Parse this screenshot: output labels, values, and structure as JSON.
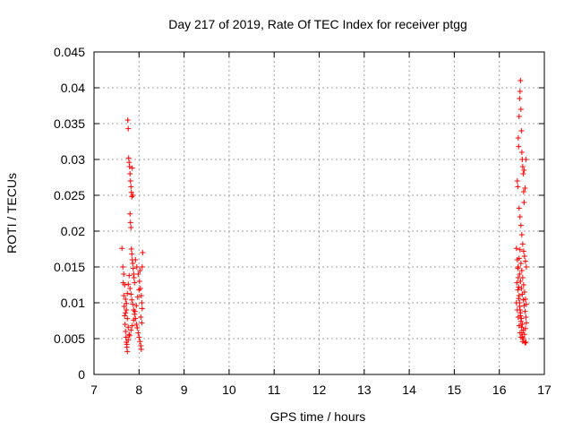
{
  "chart_data": {
    "type": "scatter",
    "title": "Day 217 of 2019, Rate Of TEC Index for receiver ptgg",
    "xlabel": "GPS time / hours",
    "ylabel": "ROTI / TECUs",
    "xlim": [
      7,
      17
    ],
    "ylim": [
      0,
      0.045
    ],
    "x_ticks": [
      7,
      8,
      9,
      10,
      11,
      12,
      13,
      14,
      15,
      16,
      17
    ],
    "x_tick_labels": [
      "7",
      "8",
      "9",
      "10",
      "11",
      "12",
      "13",
      "14",
      "15",
      "16",
      "17"
    ],
    "y_ticks": [
      0,
      0.005,
      0.01,
      0.015,
      0.02,
      0.025,
      0.03,
      0.035,
      0.04,
      0.045
    ],
    "y_tick_labels": [
      "0",
      "0.005",
      "0.01",
      "0.015",
      "0.02",
      "0.025",
      "0.03",
      "0.035",
      "0.04",
      "0.045"
    ],
    "grid": true,
    "marker": "+",
    "color": "#ff0000",
    "series": [
      {
        "name": "ROTI",
        "points": [
          [
            7.62,
            0.0176
          ],
          [
            7.64,
            0.015
          ],
          [
            7.65,
            0.0128
          ],
          [
            7.66,
            0.011
          ],
          [
            7.67,
            0.0095
          ],
          [
            7.68,
            0.0082
          ],
          [
            7.69,
            0.007
          ],
          [
            7.7,
            0.006
          ],
          [
            7.71,
            0.0052
          ],
          [
            7.72,
            0.0045
          ],
          [
            7.73,
            0.0038
          ],
          [
            7.74,
            0.0032
          ],
          [
            7.66,
            0.014
          ],
          [
            7.68,
            0.0125
          ],
          [
            7.7,
            0.0105
          ],
          [
            7.72,
            0.009
          ],
          [
            7.74,
            0.0078
          ],
          [
            7.76,
            0.0066
          ],
          [
            7.78,
            0.0056
          ],
          [
            7.75,
            0.0355
          ],
          [
            7.76,
            0.0343
          ],
          [
            7.77,
            0.0302
          ],
          [
            7.78,
            0.0296
          ],
          [
            7.79,
            0.029
          ],
          [
            7.8,
            0.028
          ],
          [
            7.81,
            0.027
          ],
          [
            7.82,
            0.0262
          ],
          [
            7.83,
            0.0254
          ],
          [
            7.84,
            0.0248
          ],
          [
            7.85,
            0.0288
          ],
          [
            7.86,
            0.025
          ],
          [
            7.8,
            0.0224
          ],
          [
            7.81,
            0.0212
          ],
          [
            7.82,
            0.0205
          ],
          [
            7.83,
            0.0175
          ],
          [
            7.84,
            0.0168
          ],
          [
            7.85,
            0.016
          ],
          [
            7.86,
            0.0155
          ],
          [
            7.87,
            0.0148
          ],
          [
            7.88,
            0.014
          ],
          [
            7.89,
            0.0135
          ],
          [
            7.9,
            0.0128
          ],
          [
            7.8,
            0.012
          ],
          [
            7.82,
            0.0112
          ],
          [
            7.84,
            0.0104
          ],
          [
            7.86,
            0.0098
          ],
          [
            7.88,
            0.009
          ],
          [
            7.9,
            0.0084
          ],
          [
            7.92,
            0.0078
          ],
          [
            7.94,
            0.007
          ],
          [
            7.96,
            0.0065
          ],
          [
            7.98,
            0.0058
          ],
          [
            8.0,
            0.0052
          ],
          [
            8.02,
            0.0046
          ],
          [
            8.04,
            0.004
          ],
          [
            8.05,
            0.0035
          ],
          [
            7.92,
            0.016
          ],
          [
            7.95,
            0.015
          ],
          [
            7.98,
            0.014
          ],
          [
            8.01,
            0.013
          ],
          [
            8.03,
            0.012
          ],
          [
            8.05,
            0.011
          ],
          [
            8.06,
            0.01
          ],
          [
            8.07,
            0.015
          ],
          [
            8.08,
            0.017
          ],
          [
            8.02,
            0.0145
          ],
          [
            8.0,
            0.0118
          ],
          [
            7.97,
            0.0108
          ],
          [
            7.94,
            0.0096
          ],
          [
            7.91,
            0.0088
          ],
          [
            7.88,
            0.0076
          ],
          [
            7.85,
            0.0068
          ],
          [
            7.82,
            0.0062
          ],
          [
            7.79,
            0.0054
          ],
          [
            7.76,
            0.0048
          ],
          [
            7.73,
            0.0042
          ],
          [
            7.7,
            0.0086
          ],
          [
            7.72,
            0.0099
          ],
          [
            7.74,
            0.0113
          ],
          [
            7.76,
            0.0126
          ],
          [
            7.78,
            0.0138
          ],
          [
            8.04,
            0.008
          ],
          [
            8.06,
            0.0072
          ],
          [
            8.07,
            0.0092
          ],
          [
            16.38,
            0.0176
          ],
          [
            16.4,
            0.016
          ],
          [
            16.41,
            0.0148
          ],
          [
            16.42,
            0.0135
          ],
          [
            16.43,
            0.0122
          ],
          [
            16.44,
            0.011
          ],
          [
            16.45,
            0.01
          ],
          [
            16.46,
            0.009
          ],
          [
            16.47,
            0.0082
          ],
          [
            16.48,
            0.0074
          ],
          [
            16.49,
            0.0066
          ],
          [
            16.5,
            0.0058
          ],
          [
            16.51,
            0.0052
          ],
          [
            16.52,
            0.0046
          ],
          [
            16.4,
            0.027
          ],
          [
            16.41,
            0.0262
          ],
          [
            16.42,
            0.033
          ],
          [
            16.43,
            0.0318
          ],
          [
            16.44,
            0.036
          ],
          [
            16.45,
            0.0385
          ],
          [
            16.46,
            0.0395
          ],
          [
            16.47,
            0.041
          ],
          [
            16.48,
            0.037
          ],
          [
            16.49,
            0.034
          ],
          [
            16.5,
            0.031
          ],
          [
            16.51,
            0.03
          ],
          [
            16.52,
            0.029
          ],
          [
            16.53,
            0.028
          ],
          [
            16.54,
            0.0255
          ],
          [
            16.55,
            0.024
          ],
          [
            16.44,
            0.0232
          ],
          [
            16.46,
            0.022
          ],
          [
            16.48,
            0.0208
          ],
          [
            16.5,
            0.0195
          ],
          [
            16.52,
            0.0182
          ],
          [
            16.54,
            0.0172
          ],
          [
            16.56,
            0.0165
          ],
          [
            16.58,
            0.0158
          ],
          [
            16.6,
            0.015
          ],
          [
            16.45,
            0.014
          ],
          [
            16.47,
            0.013
          ],
          [
            16.49,
            0.012
          ],
          [
            16.51,
            0.0112
          ],
          [
            16.53,
            0.0104
          ],
          [
            16.55,
            0.0096
          ],
          [
            16.57,
            0.0088
          ],
          [
            16.59,
            0.008
          ],
          [
            16.6,
            0.0072
          ],
          [
            16.58,
            0.0064
          ],
          [
            16.56,
            0.0056
          ],
          [
            16.54,
            0.005
          ],
          [
            16.57,
            0.0044
          ],
          [
            16.59,
            0.0045
          ],
          [
            16.39,
            0.0128
          ],
          [
            16.41,
            0.0118
          ],
          [
            16.43,
            0.0106
          ],
          [
            16.45,
            0.0095
          ],
          [
            16.47,
            0.0086
          ],
          [
            16.49,
            0.0078
          ],
          [
            16.51,
            0.007
          ],
          [
            16.53,
            0.0062
          ],
          [
            16.42,
            0.015
          ],
          [
            16.44,
            0.0162
          ],
          [
            16.46,
            0.0174
          ],
          [
            16.48,
            0.0155
          ],
          [
            16.5,
            0.0145
          ],
          [
            16.52,
            0.0135
          ],
          [
            16.54,
            0.0125
          ],
          [
            16.56,
            0.0115
          ],
          [
            16.58,
            0.0105
          ],
          [
            16.6,
            0.0098
          ],
          [
            16.55,
            0.0285
          ],
          [
            16.57,
            0.026
          ],
          [
            16.59,
            0.03
          ],
          [
            16.38,
            0.01
          ],
          [
            16.4,
            0.009
          ],
          [
            16.42,
            0.008
          ],
          [
            16.44,
            0.0068
          ],
          [
            16.46,
            0.0058
          ],
          [
            16.48,
            0.0052
          ]
        ]
      }
    ]
  }
}
